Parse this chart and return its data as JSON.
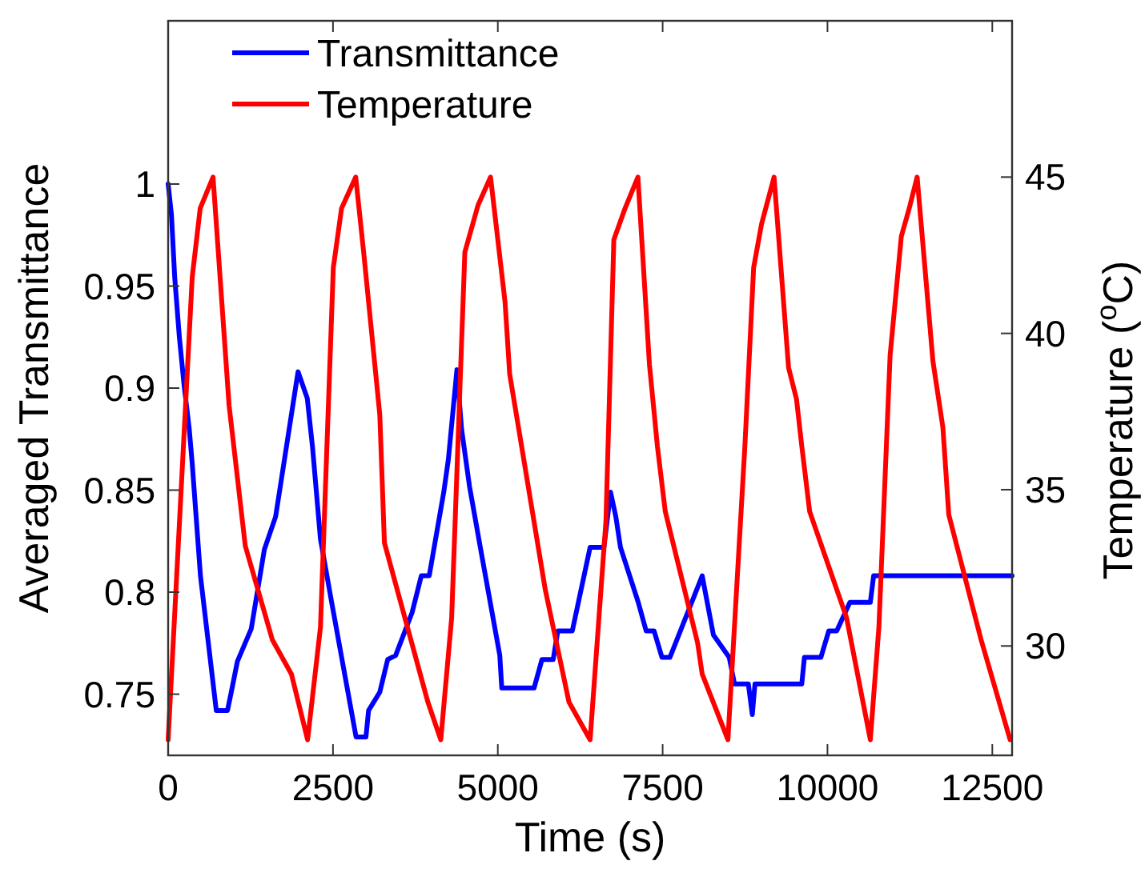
{
  "chart_data": {
    "type": "line",
    "xlabel": "Time (s)",
    "ylabel": "Averaged Transmittance",
    "y2label": "Temperature ($^{o}$C)",
    "xlim": [
      0,
      12800
    ],
    "xticks": [
      0,
      2500,
      5000,
      7500,
      10000,
      12500
    ],
    "ylim": [
      0.72,
      1.08
    ],
    "yticks": [
      0.75,
      0.8,
      0.85,
      0.9,
      0.95,
      1
    ],
    "y2lim": [
      26.5,
      50
    ],
    "y2ticks": [
      30,
      35,
      40,
      45
    ],
    "grid": false,
    "legend": "top left",
    "marker": "none",
    "line_style": "solid",
    "series": [
      {
        "name": "Transmittance",
        "color": "#0000ff",
        "x": [
          0,
          50,
          100,
          170,
          240,
          320,
          365,
          490,
          730,
          900,
          970,
          1050,
          1260,
          1460,
          1630,
          1970,
          2110,
          2190,
          2310,
          2480,
          2850,
          3000,
          3040,
          3210,
          3330,
          3450,
          3700,
          3840,
          3960,
          4180,
          4250,
          4380,
          4450,
          4570,
          4740,
          5030,
          5060,
          5550,
          5670,
          5840,
          5910,
          6130,
          6400,
          6610,
          6710,
          6790,
          6860,
          7130,
          7250,
          7370,
          7490,
          7610,
          8100,
          8270,
          8510,
          8590,
          8800,
          8860,
          8900,
          9610,
          9650,
          9900,
          10020,
          10140,
          10340,
          10650,
          10700,
          12800
        ],
        "values": [
          1.0,
          0.985,
          0.954,
          0.925,
          0.902,
          0.88,
          0.863,
          0.808,
          0.742,
          0.742,
          0.753,
          0.766,
          0.782,
          0.821,
          0.837,
          0.908,
          0.895,
          0.871,
          0.826,
          0.795,
          0.729,
          0.729,
          0.742,
          0.751,
          0.767,
          0.769,
          0.79,
          0.808,
          0.808,
          0.849,
          0.865,
          0.909,
          0.88,
          0.852,
          0.821,
          0.769,
          0.753,
          0.753,
          0.767,
          0.767,
          0.781,
          0.781,
          0.822,
          0.822,
          0.849,
          0.837,
          0.822,
          0.795,
          0.781,
          0.781,
          0.768,
          0.768,
          0.808,
          0.779,
          0.768,
          0.755,
          0.755,
          0.74,
          0.755,
          0.755,
          0.768,
          0.768,
          0.781,
          0.781,
          0.795,
          0.795,
          0.808,
          0.808
        ]
      },
      {
        "name": "Temperature",
        "color": "#ff0000",
        "axis": "y2",
        "x": [
          0,
          365,
          486,
          681,
          924,
          1170,
          1580,
          1870,
          2115,
          2310,
          2505,
          2630,
          2845,
          2970,
          3210,
          3280,
          3940,
          4135,
          4300,
          4500,
          4700,
          4890,
          5110,
          5180,
          5720,
          6080,
          6400,
          6640,
          6760,
          6930,
          7125,
          7300,
          7420,
          7540,
          8030,
          8100,
          8490,
          8750,
          8880,
          9000,
          9190,
          9410,
          9530,
          9610,
          9730,
          10290,
          10650,
          10780,
          10950,
          11120,
          11240,
          11360,
          11600,
          11750,
          11840,
          12330,
          12770
        ],
        "values": [
          27,
          41.8,
          44,
          45,
          37.7,
          33.2,
          30.2,
          29.1,
          27,
          30.6,
          42.1,
          44,
          45,
          42.5,
          37.4,
          33.3,
          28.2,
          27,
          30.9,
          42.6,
          44.1,
          45,
          41,
          38.7,
          31.8,
          28.2,
          27,
          34,
          43,
          44,
          45,
          39,
          36.4,
          34.3,
          30.1,
          29.1,
          27,
          36.5,
          42.1,
          43.5,
          45,
          38.9,
          37.9,
          36.4,
          34.3,
          30.9,
          27,
          30.6,
          39.3,
          43.1,
          44,
          45,
          39.1,
          37,
          34.2,
          30.2,
          27
        ]
      }
    ]
  }
}
